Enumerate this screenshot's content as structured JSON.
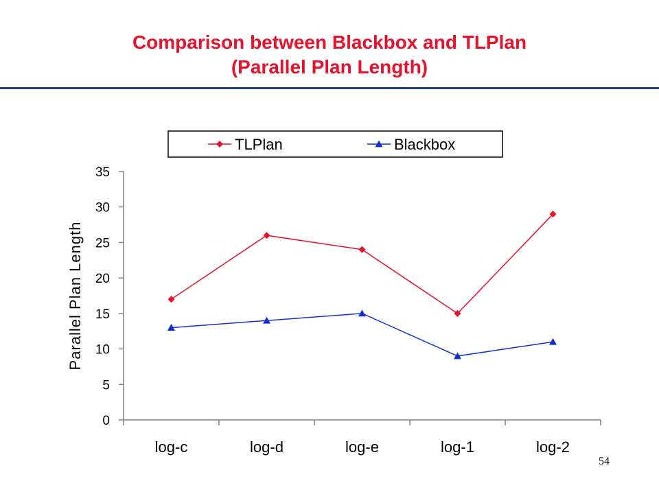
{
  "slide": {
    "title_line1": "Comparison between Blackbox and TLPlan",
    "title_line2": "(Parallel Plan Length)",
    "page_number": "54",
    "title_color": "#e8102a",
    "rule_color": "#1f3f8f"
  },
  "chart_data": {
    "type": "line",
    "categories": [
      "log-c",
      "log-d",
      "log-e",
      "log-1",
      "log-2"
    ],
    "series": [
      {
        "name": "TLPlan",
        "values": [
          17,
          26,
          24,
          15,
          29
        ],
        "color": "#e8102a",
        "marker": "diamond"
      },
      {
        "name": "Blackbox",
        "values": [
          13,
          14,
          15,
          9,
          11
        ],
        "color": "#1030d0",
        "marker": "triangle"
      }
    ],
    "ylabel": "Parallel Plan Length",
    "ylim": [
      0,
      35
    ],
    "yticks": [
      0,
      5,
      10,
      15,
      20,
      25,
      30,
      35
    ],
    "grid": false,
    "legend": "top"
  }
}
